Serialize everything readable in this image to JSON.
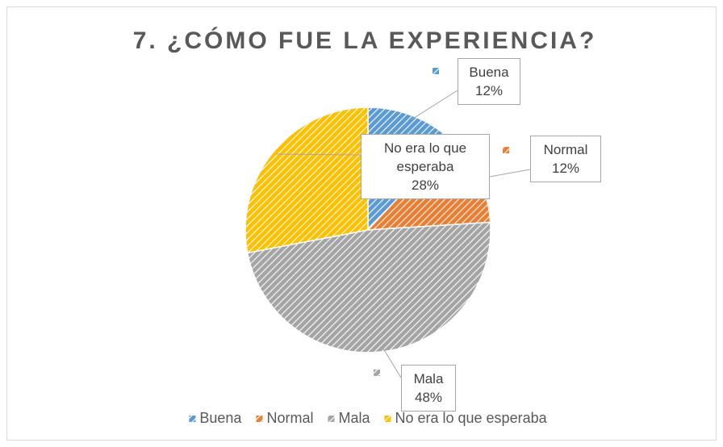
{
  "chart_data": {
    "type": "pie",
    "title": "7. ¿CÓMO FUE LA EXPERIENCIA?",
    "categories": [
      "Buena",
      "Normal",
      "Mala",
      "No era lo que esperaba"
    ],
    "values": [
      12,
      12,
      48,
      28
    ],
    "value_labels": [
      "12%",
      "12%",
      "48%",
      "28%"
    ],
    "colors": [
      "#5b9bd5",
      "#ed7d31",
      "#a5a5a5",
      "#ffc000"
    ],
    "legend": "bottom"
  }
}
